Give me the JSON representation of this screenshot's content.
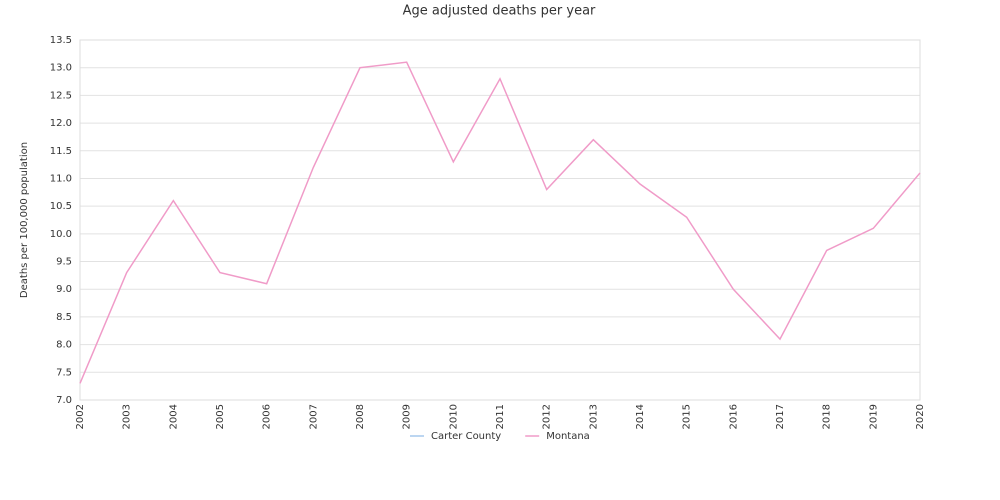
{
  "chart_data": {
    "type": "line",
    "title": "Age adjusted deaths per year",
    "y_label": "Deaths per 100,000 population",
    "categories": [
      "2002",
      "2003",
      "2004",
      "2005",
      "2006",
      "2007",
      "2008",
      "2009",
      "2010",
      "2011",
      "2012",
      "2013",
      "2014",
      "2015",
      "2016",
      "2017",
      "2018",
      "2019",
      "2020"
    ],
    "series": [
      {
        "name": "Carter County",
        "color": "#a6c8ec",
        "values": [
          null,
          null,
          null,
          null,
          null,
          null,
          null,
          null,
          null,
          null,
          null,
          null,
          null,
          null,
          null,
          null,
          null,
          null,
          null
        ]
      },
      {
        "name": "Montana",
        "color": "#f09bc8",
        "values": [
          7.3,
          9.3,
          10.6,
          9.3,
          9.1,
          11.2,
          13.0,
          13.1,
          11.3,
          12.8,
          10.8,
          11.7,
          10.9,
          10.3,
          9.0,
          8.1,
          9.7,
          10.1,
          11.1
        ]
      }
    ],
    "ylim": [
      7.0,
      13.5
    ],
    "yticks": [
      {
        "value": 7,
        "label": "7.0"
      },
      7.5,
      {
        "value": 8,
        "label": "8.0"
      },
      8.5,
      {
        "value": 9,
        "label": "9.0"
      },
      9.5,
      {
        "value": 10,
        "label": "10.0"
      },
      10.5,
      {
        "value": 11,
        "label": "11.0"
      },
      11.5,
      {
        "value": 12,
        "label": "12.0"
      },
      12.5,
      {
        "value": 13,
        "label": "13.0"
      },
      13.5
    ],
    "grid": true,
    "legend": "bottom"
  }
}
